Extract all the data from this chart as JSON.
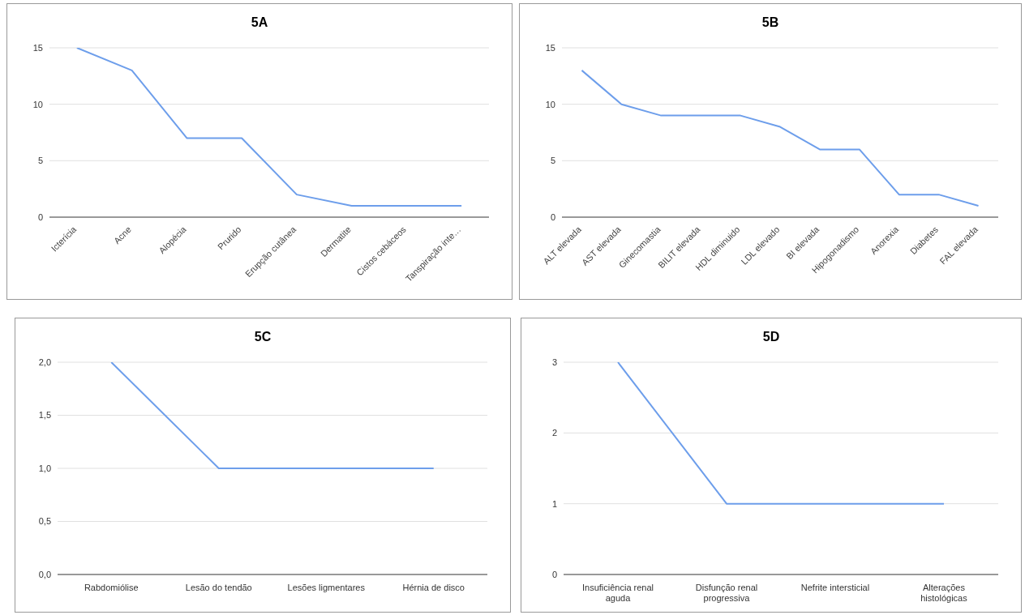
{
  "chart_data": [
    {
      "type": "line",
      "title": "5A",
      "categories": [
        "Icterícia",
        "Acne",
        "Alopécia",
        "Prurido",
        "Erupção cutânea",
        "Dermatite",
        "Cistos cebáceos",
        "Tanspiração inte…"
      ],
      "series": [
        {
          "color": "#6d9eeb",
          "values": [
            15,
            13,
            7,
            7,
            2,
            1,
            1,
            1
          ]
        }
      ],
      "ylim": [
        0,
        15
      ],
      "yticks": [
        0,
        5,
        10,
        15
      ],
      "grid": "y",
      "legend": false,
      "marker": "none"
    },
    {
      "type": "line",
      "title": "5B",
      "categories": [
        "ALT elevada",
        "AST elevada",
        "Ginecomastia",
        "BILIT elevada",
        "HDL diminuido",
        "LDL elevado",
        "BI elevada",
        "Hipogonadismo",
        "Anorexia",
        "Diabetes",
        "FAL elevada"
      ],
      "series": [
        {
          "color": "#6d9eeb",
          "values": [
            13,
            10,
            9,
            9,
            9,
            8,
            6,
            6,
            2,
            2,
            1
          ]
        }
      ],
      "ylim": [
        0,
        15
      ],
      "yticks": [
        0,
        5,
        10,
        15
      ],
      "grid": "y",
      "legend": false,
      "marker": "none"
    },
    {
      "type": "line",
      "title": "5C",
      "categories": [
        "Rabdomiólise",
        "Lesão do tendão",
        "Lesões ligmentares",
        "Hérnia de disco"
      ],
      "series": [
        {
          "color": "#6d9eeb",
          "values": [
            2,
            1,
            1,
            1
          ]
        }
      ],
      "ylim": [
        0,
        2
      ],
      "yticks": [
        {
          "value": 0,
          "label": "0,0"
        },
        {
          "value": 0.5,
          "label": "0,5"
        },
        {
          "value": 1,
          "label": "1,0"
        },
        {
          "value": 1.5,
          "label": "1,5"
        },
        {
          "value": 2,
          "label": "2,0"
        }
      ],
      "grid": "y",
      "legend": false,
      "marker": "none"
    },
    {
      "type": "line",
      "title": "5D",
      "categories": [
        "Insuficiência renal aguda",
        "Disfunção renal progressiva",
        "Nefrite intersticial",
        "Alterações histológicas"
      ],
      "series": [
        {
          "color": "#6d9eeb",
          "values": [
            3,
            1,
            1,
            1
          ]
        }
      ],
      "ylim": [
        0,
        3
      ],
      "yticks": [
        0,
        1,
        2,
        3
      ],
      "grid": "y",
      "legend": false,
      "marker": "none"
    }
  ]
}
